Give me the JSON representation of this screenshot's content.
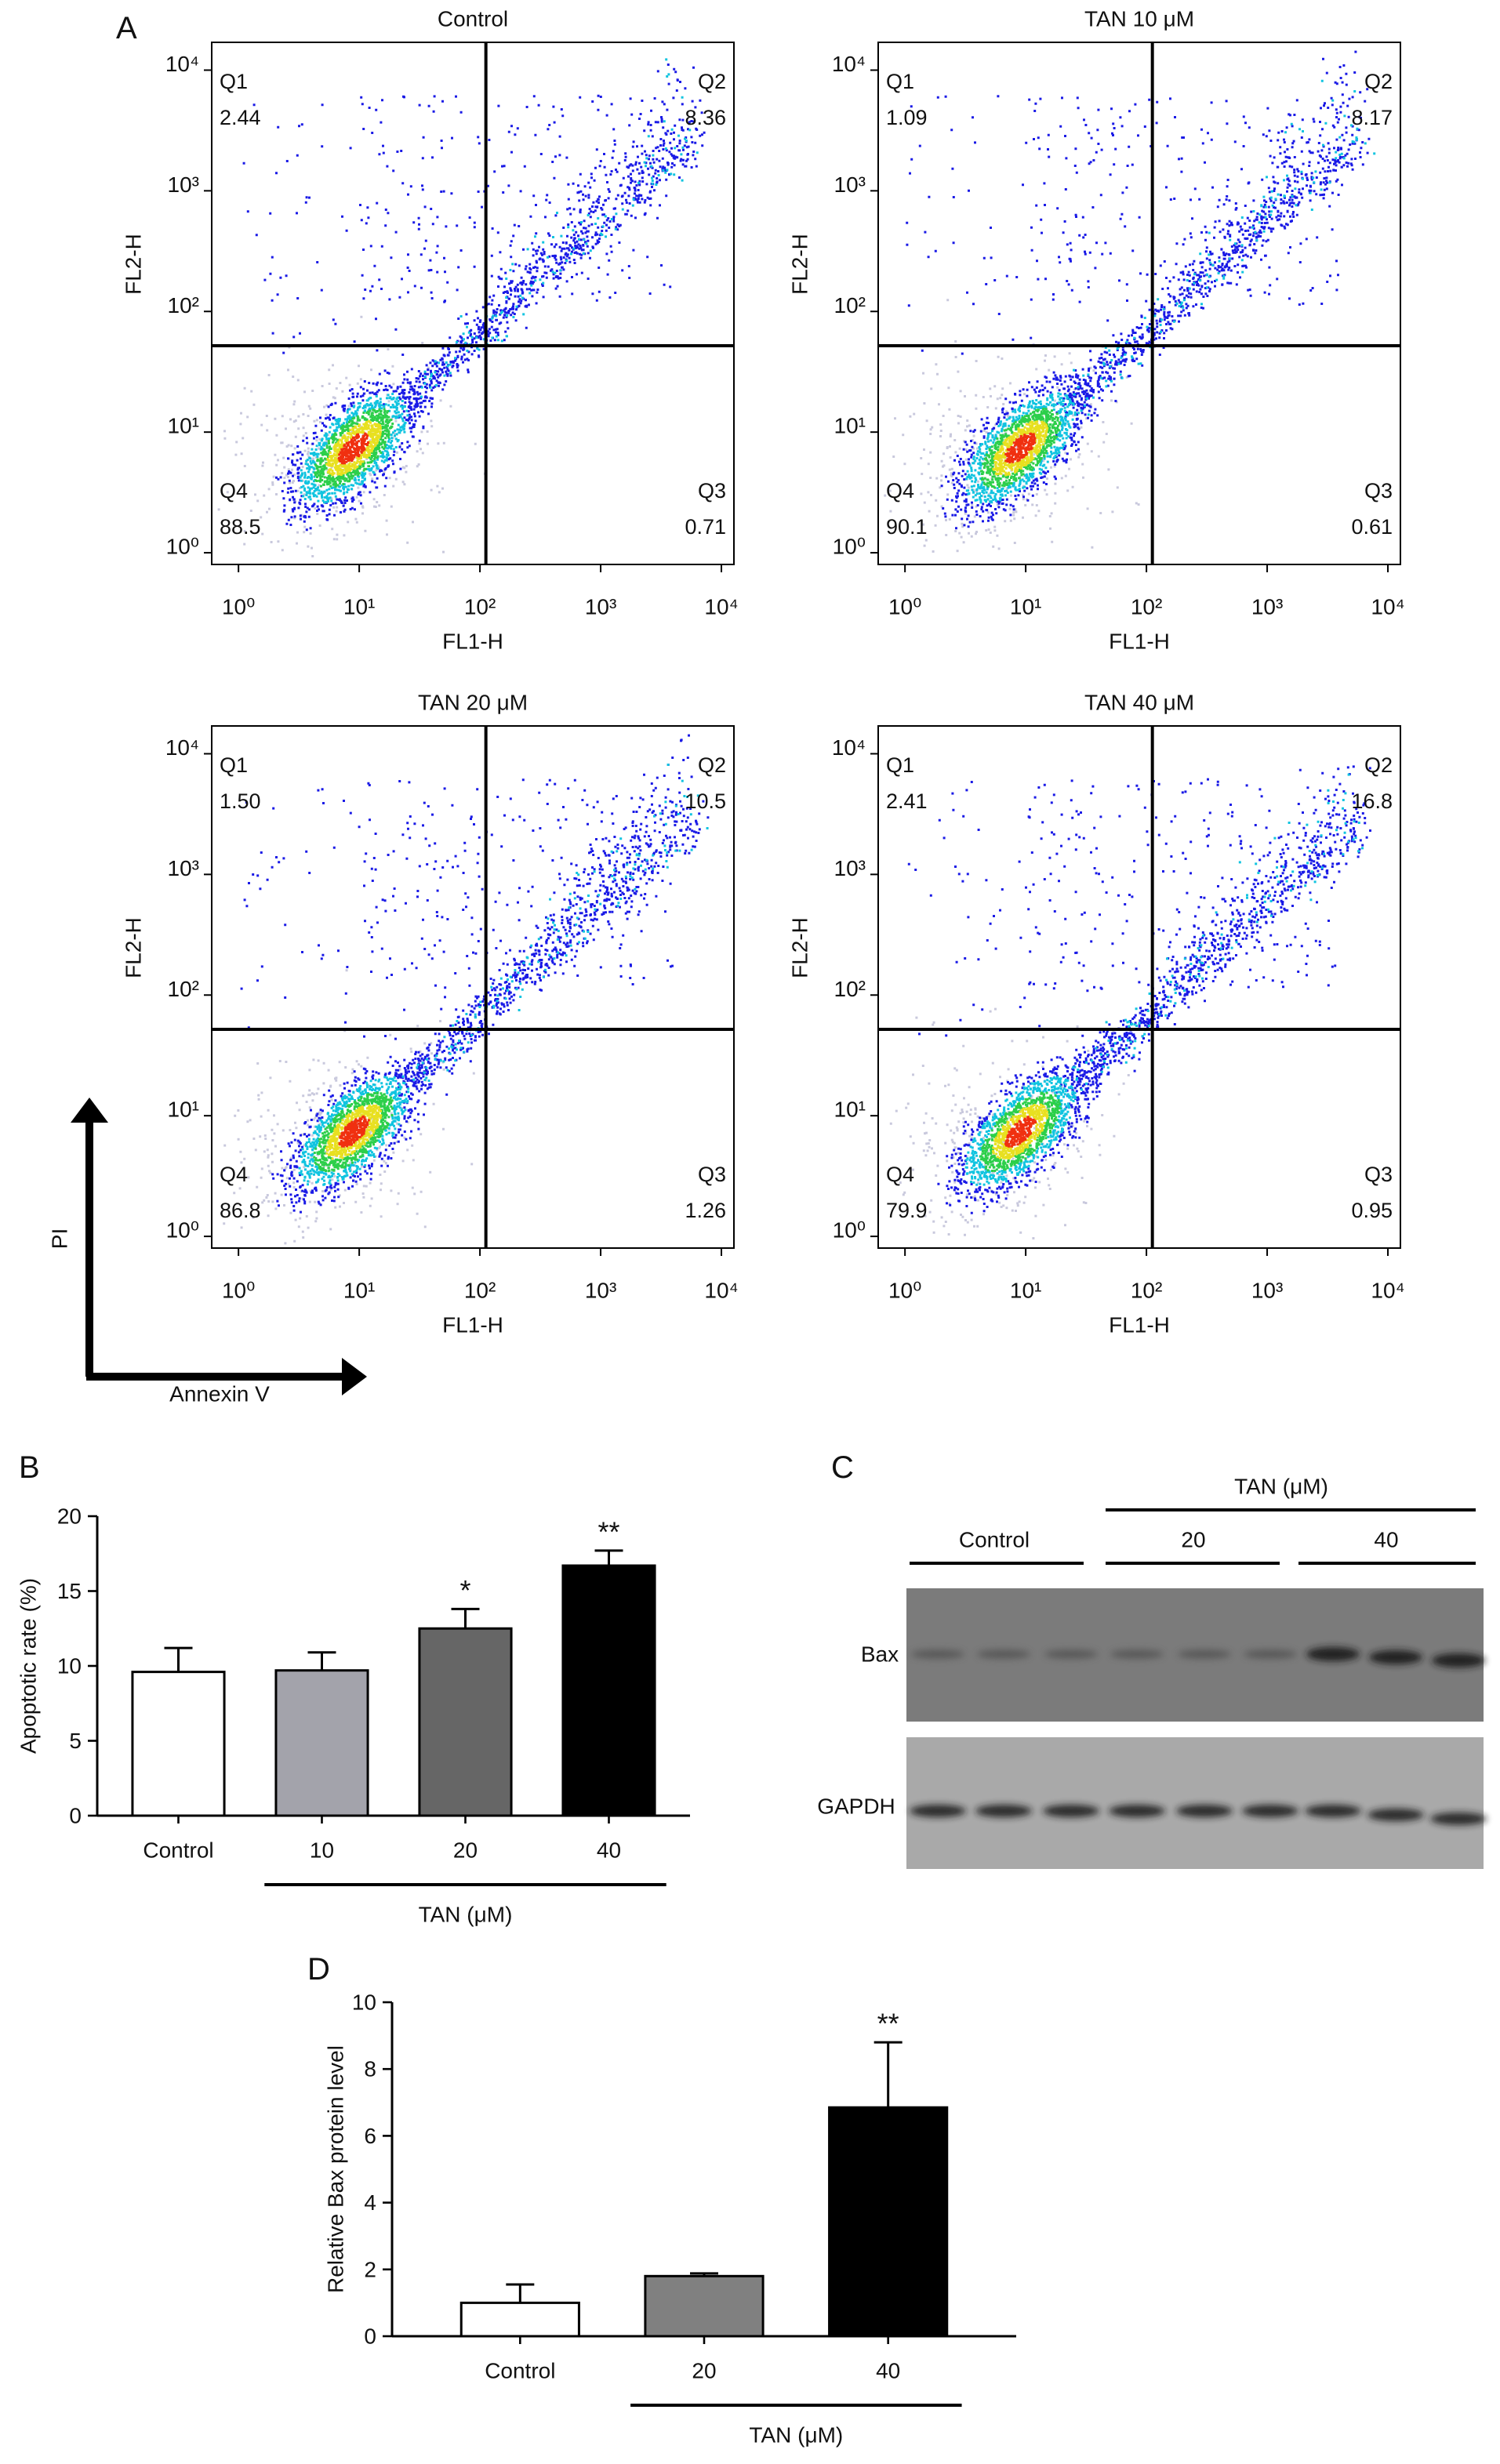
{
  "chart_data": [
    {
      "type": "scatter",
      "panel": "A",
      "x_label": "FL1-H",
      "y_label": "FL2-H",
      "log_scale": true,
      "xlim": [
        0.6,
        12700
      ],
      "ylim": [
        0.8,
        17000
      ],
      "xticks": [
        {
          "value": 1,
          "label": "10⁰"
        },
        {
          "value": 10,
          "label": "10¹"
        },
        {
          "value": 100,
          "label": "10²"
        },
        {
          "value": 1000,
          "label": "10³"
        },
        {
          "value": 10000,
          "label": "10⁴"
        }
      ],
      "yticks": [
        {
          "value": 1,
          "label": "10⁰"
        },
        {
          "value": 10,
          "label": "10¹"
        },
        {
          "value": 100,
          "label": "10²"
        },
        {
          "value": 1000,
          "label": "10³"
        },
        {
          "value": 10000,
          "label": "10⁴"
        }
      ],
      "gate_x": 112,
      "gate_y": 52,
      "quadrant_names": [
        "Q1",
        "Q2",
        "Q3",
        "Q4"
      ],
      "plots": [
        {
          "title": "Control",
          "values": [
            2.44,
            8.36,
            0.71,
            88.5
          ]
        },
        {
          "title": "TAN 10 μM",
          "values": [
            1.09,
            8.17,
            0.61,
            90.1
          ]
        },
        {
          "title": "TAN 20 μM",
          "values": [
            1.5,
            10.5,
            1.26,
            86.8
          ],
          "value_labels": [
            "1.50",
            "10.5",
            "1.26",
            "86.8"
          ]
        },
        {
          "title": "TAN 40 μM",
          "values": [
            2.41,
            16.8,
            0.95,
            79.9
          ]
        }
      ],
      "axis_arrows": {
        "y": "PI",
        "x": "Annexin V"
      }
    },
    {
      "type": "bar",
      "panel": "B",
      "y_label": "Apoptotic rate (%)",
      "categories": [
        "Control",
        "10",
        "20",
        "40"
      ],
      "group_label": "TAN (μM)",
      "values": [
        9.6,
        9.7,
        12.5,
        16.7
      ],
      "errors": [
        1.6,
        1.2,
        1.3,
        1.0
      ],
      "colors": [
        "#ffffff",
        "#a3a3ab",
        "#666666",
        "#000000"
      ],
      "significance": [
        null,
        null,
        "*",
        "**"
      ],
      "ylim": [
        0,
        20
      ],
      "yticks": [
        0,
        5,
        10,
        15,
        20
      ]
    },
    {
      "type": "bar",
      "panel": "D",
      "y_label": "Relative Bax protein level",
      "categories": [
        "Control",
        "20",
        "40"
      ],
      "group_label": "TAN (μM)",
      "values": [
        1.0,
        1.8,
        6.85
      ],
      "errors": [
        0.55,
        0.08,
        1.95
      ],
      "colors": [
        "#ffffff",
        "#808080",
        "#000000"
      ],
      "significance": [
        null,
        null,
        "**"
      ],
      "ylim": [
        0,
        10
      ],
      "yticks": [
        0,
        2,
        4,
        6,
        8,
        10
      ]
    }
  ],
  "blot": {
    "panel": "C",
    "group_label": "TAN (μM)",
    "lanes": [
      "Control",
      "20",
      "40"
    ],
    "rows": [
      "Bax",
      "GAPDH"
    ]
  }
}
